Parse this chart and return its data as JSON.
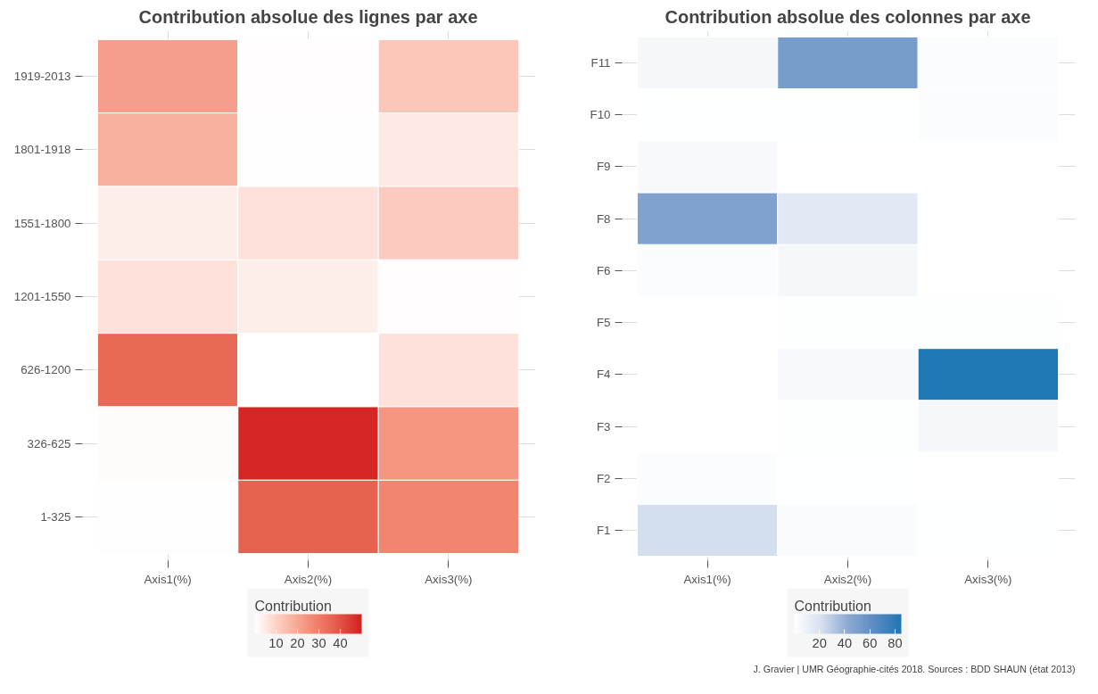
{
  "chart_data": [
    {
      "type": "heatmap",
      "title": "Contribution absolue des lignes par axe",
      "categories": [
        "Axis1(%)",
        "Axis2(%)",
        "Axis3(%)"
      ],
      "y_categories": [
        "1919-2013",
        "1801-1918",
        "1551-1800",
        "1201-1550",
        "626-1200",
        "326-625",
        "1-325"
      ],
      "cells": [
        [
          22,
          0.5,
          13
        ],
        [
          18,
          0.3,
          5
        ],
        [
          4,
          7,
          12
        ],
        [
          7,
          4,
          0.5
        ],
        [
          35,
          0,
          7
        ],
        [
          1,
          49,
          24
        ],
        [
          0.2,
          37,
          28
        ]
      ],
      "clabel": "Contribution",
      "clim": [
        0,
        50
      ],
      "cticks": [
        10,
        20,
        30,
        40
      ],
      "grid": true
    },
    {
      "type": "heatmap",
      "title": "Contribution absolue des colonnes par axe",
      "categories": [
        "Axis1(%)",
        "Axis2(%)",
        "Axis3(%)"
      ],
      "y_categories": [
        "F11",
        "F10",
        "F9",
        "F8",
        "F6",
        "F5",
        "F4",
        "F3",
        "F2",
        "F1"
      ],
      "cells": [
        [
          5,
          52,
          2
        ],
        [
          0.5,
          0.5,
          2
        ],
        [
          4,
          0.3,
          0
        ],
        [
          48,
          15,
          0.3
        ],
        [
          2,
          5,
          0.3
        ],
        [
          0.2,
          1,
          1
        ],
        [
          0,
          4,
          85
        ],
        [
          0,
          1,
          5
        ],
        [
          2,
          0.5,
          0.3
        ],
        [
          22,
          3,
          0.5
        ]
      ],
      "clabel": "Contribution",
      "clim": [
        0,
        85
      ],
      "cticks": [
        20,
        40,
        60,
        80
      ],
      "grid": true,
      "annotations": [
        "J. Gravier | UMR Géographie-cités 2018. Sources : BDD SHAUN (état 2013)"
      ]
    }
  ]
}
